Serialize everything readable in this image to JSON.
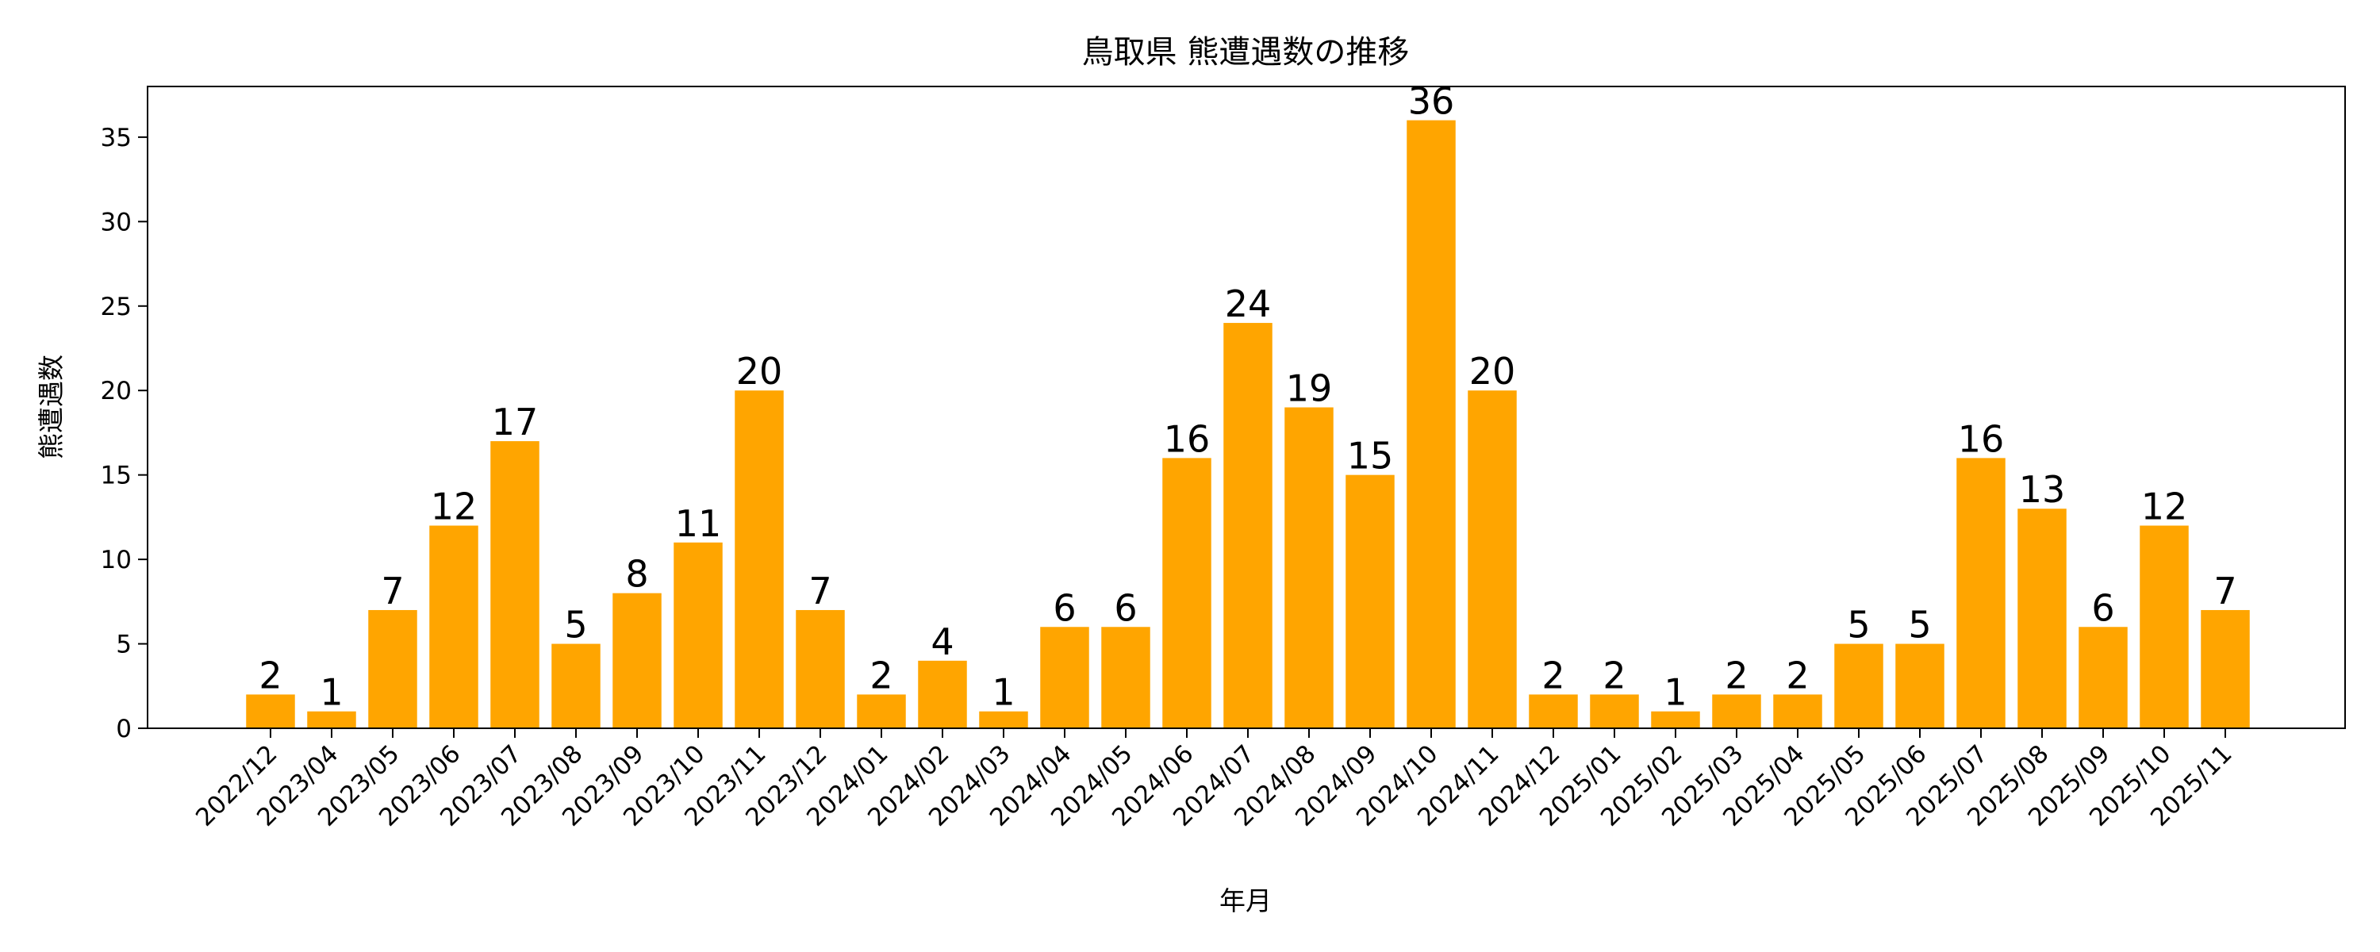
{
  "chart_data": {
    "type": "bar",
    "title": "鳥取県 熊遭遇数の推移",
    "xlabel": "年月",
    "ylabel": "熊遭遇数",
    "ylim": [
      0,
      38
    ],
    "yticks": [
      0,
      5,
      10,
      15,
      20,
      25,
      30,
      35
    ],
    "grid": false,
    "bar_color": "#FFA500",
    "categories": [
      "2022/12",
      "2023/04",
      "2023/05",
      "2023/06",
      "2023/07",
      "2023/08",
      "2023/09",
      "2023/10",
      "2023/11",
      "2023/12",
      "2024/01",
      "2024/02",
      "2024/03",
      "2024/04",
      "2024/05",
      "2024/06",
      "2024/07",
      "2024/08",
      "2024/09",
      "2024/10",
      "2024/11",
      "2024/12",
      "2025/01",
      "2025/02",
      "2025/03",
      "2025/04",
      "2025/05",
      "2025/06",
      "2025/07",
      "2025/08",
      "2025/09",
      "2025/10",
      "2025/11"
    ],
    "values": [
      2,
      1,
      7,
      12,
      17,
      5,
      8,
      11,
      20,
      7,
      2,
      4,
      1,
      6,
      6,
      16,
      24,
      19,
      15,
      36,
      20,
      2,
      2,
      1,
      2,
      2,
      5,
      5,
      16,
      13,
      6,
      12,
      7
    ]
  }
}
